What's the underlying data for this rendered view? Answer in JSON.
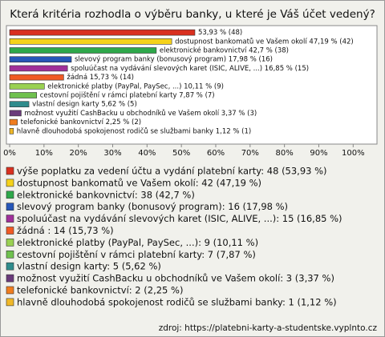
{
  "chart_data": {
    "type": "bar",
    "orientation": "horizontal",
    "title": "Která kritéria rozhodla o výběru banky, u které je Váš účet vedený?",
    "categories": [
      "výše poplatku za vedení účtu a vydání platební karty: 48 (53,93 %)",
      "dostupnost bankomatů ve Vašem okolí: 42 (47,19 %)",
      "elektronické bankovnictví: 38 (42,7 %)",
      "slevový program banky (bonusový program): 16 (17,98 %)",
      "spoluúčast na vydávání slevových karet (ISIC, ALIVE, ...): 15 (16,85 %)",
      "žádná : 14 (15,73 %)",
      "elektronické platby (PayPal, PaySec, ...): 9 (10,11 %)",
      "cestovní pojištění v rámci platební karty: 7 (7,87 %)",
      "vlastní design karty: 5 (5,62 %)",
      "možnost využití CashBacku u obchodníků ve Vašem okolí: 3 (3,37 %)",
      "telefonické bankovnictví: 2 (2,25 %)",
      "hlavně dlouhodobá spokojenost rodičů se službami banky: 1 (1,12 %)"
    ],
    "values": [
      53.93,
      47.19,
      42.7,
      17.98,
      16.85,
      15.73,
      10.11,
      7.87,
      5.62,
      3.37,
      2.25,
      1.12
    ],
    "value_labels": [
      "53,93 % (48)",
      "dostupnost bankomatů ve Vašem okolí 47,19 % (42)",
      "elektronické bankovnictví 42,7 % (38)",
      "slevový program banky (bonusový program) 17,98 % (16)",
      "spoluúčast na vydávání slevových karet (ISIC, ALIVE, ...) 16,85 % (15)",
      "žádná 15,73 % (14)",
      "elektronické platby (PayPal, PaySec, ...) 10,11 % (9)",
      "cestovní pojištění v rámci platební karty 7,87 % (7)",
      "vlastní design karty 5,62 % (5)",
      "možnost využití CashBacku u obchodníků ve Vašem okolí 3,37 % (3)",
      "telefonické bankovnictví 2,25 % (2)",
      "hlavně dlouhodobá spokojenost rodičů se službami banky 1,12 % (1)"
    ],
    "colors": [
      "#d9301f",
      "#f5d21a",
      "#2ea84a",
      "#2757b8",
      "#a0309a",
      "#f05a24",
      "#9ad152",
      "#6fc14e",
      "#2f8c8c",
      "#6a3a7a",
      "#f07d1e",
      "#f0b828"
    ],
    "xlim": [
      0,
      106
    ],
    "xticks": [
      {
        "value": 0,
        "label": "0%"
      },
      {
        "value": 10,
        "label": "10%"
      },
      {
        "value": 20,
        "label": "20%"
      },
      {
        "value": 30,
        "label": "30%"
      },
      {
        "value": 40,
        "label": "40%"
      },
      {
        "value": 50,
        "label": "50%"
      },
      {
        "value": 60,
        "label": "60%"
      },
      {
        "value": 70,
        "label": "70%"
      },
      {
        "value": 80,
        "label": "80%"
      },
      {
        "value": 90,
        "label": "90%"
      },
      {
        "value": 100,
        "label": "100%"
      }
    ],
    "source": "zdroj: https://platebni-karty-a-studentske.vyplnto.cz"
  }
}
